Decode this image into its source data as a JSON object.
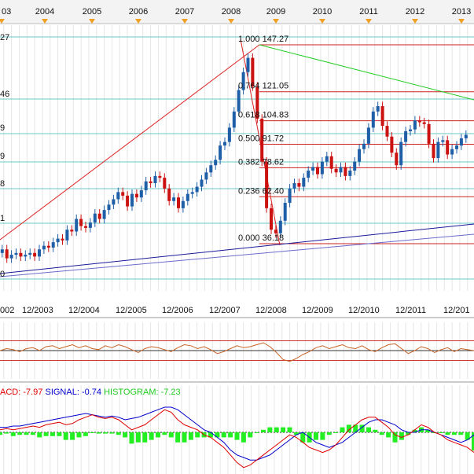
{
  "chart_data": {
    "type": "candlestick",
    "price_panel": {
      "year_markers": [
        "03",
        "2004",
        "2005",
        "2006",
        "2007",
        "2008",
        "2009",
        "2010",
        "2011",
        "2012",
        "2013"
      ],
      "month_labels": [
        "002",
        "12/2003",
        "12/2004",
        "12/2005",
        "12/2006",
        "12/2007",
        "12/2008",
        "12/2009",
        "12/2010",
        "12/2011",
        "12/201"
      ],
      "price_axis_labels": [
        "27",
        "46",
        "9",
        "9",
        "8",
        "1",
        "0"
      ],
      "fibonacci": [
        {
          "ratio": "1.000",
          "price": "147.27",
          "value": 147.27
        },
        {
          "ratio": "0.764",
          "price": "121.05",
          "value": 121.05
        },
        {
          "ratio": "0.618",
          "price": "104.83",
          "value": 104.83
        },
        {
          "ratio": "0.500",
          "price": "91.72",
          "value": 91.72
        },
        {
          "ratio": "0.382",
          "price": "78.62",
          "value": 78.62
        },
        {
          "ratio": "0.236",
          "price": "62.40",
          "value": 62.4
        },
        {
          "ratio": "0.000",
          "price": "36.18",
          "value": 36.18
        }
      ],
      "ylim": [
        5,
        164
      ],
      "xlim": [
        2002.9,
        2013.25
      ],
      "closes": [
        [
          2003.0,
          27
        ],
        [
          2003.1,
          31
        ],
        [
          2003.2,
          33
        ],
        [
          2003.3,
          28
        ],
        [
          2003.4,
          30
        ],
        [
          2003.5,
          31
        ],
        [
          2003.6,
          29
        ],
        [
          2003.7,
          30
        ],
        [
          2003.8,
          31
        ],
        [
          2003.9,
          29
        ],
        [
          2004.0,
          33
        ],
        [
          2004.1,
          35
        ],
        [
          2004.2,
          34
        ],
        [
          2004.3,
          37
        ],
        [
          2004.4,
          39
        ],
        [
          2004.5,
          38
        ],
        [
          2004.6,
          44
        ],
        [
          2004.7,
          43
        ],
        [
          2004.8,
          50
        ],
        [
          2004.9,
          46
        ],
        [
          2005.0,
          45
        ],
        [
          2005.1,
          48
        ],
        [
          2005.2,
          53
        ],
        [
          2005.3,
          50
        ],
        [
          2005.4,
          55
        ],
        [
          2005.5,
          58
        ],
        [
          2005.6,
          61
        ],
        [
          2005.7,
          65
        ],
        [
          2005.8,
          63
        ],
        [
          2005.9,
          57
        ],
        [
          2006.0,
          64
        ],
        [
          2006.1,
          62
        ],
        [
          2006.2,
          66
        ],
        [
          2006.3,
          71
        ],
        [
          2006.4,
          70
        ],
        [
          2006.5,
          74
        ],
        [
          2006.6,
          73
        ],
        [
          2006.7,
          67
        ],
        [
          2006.8,
          60
        ],
        [
          2006.9,
          62
        ],
        [
          2007.0,
          56
        ],
        [
          2007.1,
          60
        ],
        [
          2007.2,
          64
        ],
        [
          2007.3,
          65
        ],
        [
          2007.4,
          68
        ],
        [
          2007.5,
          72
        ],
        [
          2007.6,
          76
        ],
        [
          2007.7,
          80
        ],
        [
          2007.8,
          83
        ],
        [
          2007.9,
          91
        ],
        [
          2008.0,
          93
        ],
        [
          2008.1,
          101
        ],
        [
          2008.2,
          110
        ],
        [
          2008.3,
          122
        ],
        [
          2008.4,
          132
        ],
        [
          2008.5,
          140
        ],
        [
          2008.6,
          124
        ],
        [
          2008.7,
          106
        ],
        [
          2008.8,
          82
        ],
        [
          2008.9,
          56
        ],
        [
          2009.0,
          44
        ],
        [
          2009.1,
          42
        ],
        [
          2009.2,
          49
        ],
        [
          2009.3,
          59
        ],
        [
          2009.4,
          67
        ],
        [
          2009.5,
          70
        ],
        [
          2009.6,
          68
        ],
        [
          2009.7,
          73
        ],
        [
          2009.8,
          77
        ],
        [
          2009.9,
          79
        ],
        [
          2010.0,
          75
        ],
        [
          2010.1,
          82
        ],
        [
          2010.2,
          85
        ],
        [
          2010.3,
          78
        ],
        [
          2010.4,
          76
        ],
        [
          2010.5,
          79
        ],
        [
          2010.6,
          74
        ],
        [
          2010.7,
          77
        ],
        [
          2010.8,
          82
        ],
        [
          2010.9,
          89
        ],
        [
          2011.0,
          92
        ],
        [
          2011.1,
          101
        ],
        [
          2011.2,
          110
        ],
        [
          2011.3,
          113
        ],
        [
          2011.4,
          102
        ],
        [
          2011.5,
          96
        ],
        [
          2011.6,
          87
        ],
        [
          2011.7,
          80
        ],
        [
          2011.8,
          93
        ],
        [
          2011.9,
          99
        ],
        [
          2012.0,
          100
        ],
        [
          2012.1,
          105
        ],
        [
          2012.2,
          104
        ],
        [
          2012.3,
          103
        ],
        [
          2012.4,
          92
        ],
        [
          2012.5,
          84
        ],
        [
          2012.6,
          93
        ],
        [
          2012.7,
          94
        ],
        [
          2012.8,
          86
        ],
        [
          2012.9,
          89
        ],
        [
          2013.0,
          91
        ],
        [
          2013.1,
          95
        ],
        [
          2013.2,
          97
        ]
      ]
    },
    "oscillator_panel": {
      "type": "line",
      "levels": [
        -1,
        0,
        1
      ],
      "values": [
        0.0,
        0.2,
        0.1,
        -0.1,
        0.2,
        0.3,
        0.0,
        0.4,
        0.5,
        0.2,
        0.4,
        0.6,
        0.3,
        0.5,
        0.2,
        0.1,
        0.5,
        0.3,
        0.6,
        0.4,
        0.1,
        -0.2,
        0.2,
        0.4,
        0.3,
        0.1,
        -0.1,
        0.3,
        0.6,
        0.5,
        0.2,
        0.4,
        0.1,
        -0.3,
        -0.1,
        0.2,
        0.5,
        0.3,
        0.4,
        0.6,
        0.8,
        0.4,
        -0.2,
        -0.9,
        -1.1,
        -0.8,
        -0.4,
        -0.1,
        0.3,
        0.5,
        0.2,
        0.4,
        0.6,
        0.3,
        0.2,
        0.5,
        0.1,
        -0.1,
        0.3,
        0.6,
        0.7,
        0.2,
        -0.3,
        0.0,
        0.4,
        0.2,
        -0.2,
        0.1,
        0.3,
        -0.1,
        0.2,
        0.1,
        0.0
      ]
    },
    "macd_panel": {
      "type": "line",
      "legend": [
        {
          "text": "ACD: -7.97",
          "color": "#e00000"
        },
        {
          "text": "SIGNAL: -0.74",
          "color": "#0000cc"
        },
        {
          "text": "HISTOGRAM: -7.23",
          "color": "#22cc22"
        }
      ],
      "macd": [
        1,
        1.5,
        1,
        1.5,
        2,
        2.5,
        2,
        3,
        3.5,
        4,
        3,
        3.5,
        5,
        6,
        7,
        6,
        5.5,
        6,
        5,
        3,
        1,
        2,
        3,
        5,
        7,
        9,
        8,
        5,
        3,
        2,
        1,
        -1,
        -2,
        -4,
        -6,
        -9,
        -12,
        -14,
        -13,
        -11,
        -9,
        -7,
        -5,
        -3,
        -1,
        -2,
        -4,
        -6,
        -7,
        -8,
        -7,
        -5,
        -2,
        1,
        3,
        5,
        6,
        6,
        4,
        2,
        -1,
        -2,
        -1,
        1,
        3,
        2,
        0,
        -1,
        -3,
        -4,
        -5,
        -6,
        -8
      ],
      "signal": [
        2,
        2,
        2.5,
        2.5,
        3,
        3.5,
        4,
        4.5,
        5,
        5.5,
        6,
        6.5,
        7,
        7.5,
        7,
        6.5,
        6,
        6.5,
        6,
        5,
        5.5,
        6,
        7,
        8,
        9,
        10,
        10,
        9,
        7,
        5,
        3,
        1,
        0,
        -2,
        -4,
        -7,
        -9,
        -10,
        -11,
        -11,
        -10,
        -9,
        -7,
        -5,
        -3,
        -1,
        0,
        -2,
        -4,
        -5,
        -6,
        -5,
        -4,
        -2,
        0,
        2,
        4,
        5,
        5,
        4,
        3,
        1,
        0,
        0,
        1,
        1,
        0,
        -1,
        -2,
        -3,
        -4,
        -3,
        -1
      ],
      "histogram": [
        -1,
        -0.5,
        -1.5,
        -1,
        -1,
        -1,
        -2,
        -1.5,
        -1.5,
        -1.5,
        -3,
        -3,
        -2,
        -1.5,
        0,
        -0.5,
        -0.5,
        -0.5,
        -1,
        -2,
        -4.5,
        -4,
        -4,
        -3,
        -2,
        -1,
        -2,
        -4,
        -4,
        -3,
        -2,
        -2,
        -2,
        -2,
        -2,
        -2,
        -3,
        -4,
        -2,
        0,
        1,
        2,
        2,
        2,
        2,
        -1,
        -4,
        -4,
        -3,
        -3,
        -1,
        0,
        2,
        3,
        3,
        3,
        2,
        1,
        -1,
        -2,
        -4,
        -3,
        -1,
        1,
        2,
        1,
        0,
        0,
        -1,
        -1,
        -1,
        -3,
        -7.23
      ]
    }
  }
}
